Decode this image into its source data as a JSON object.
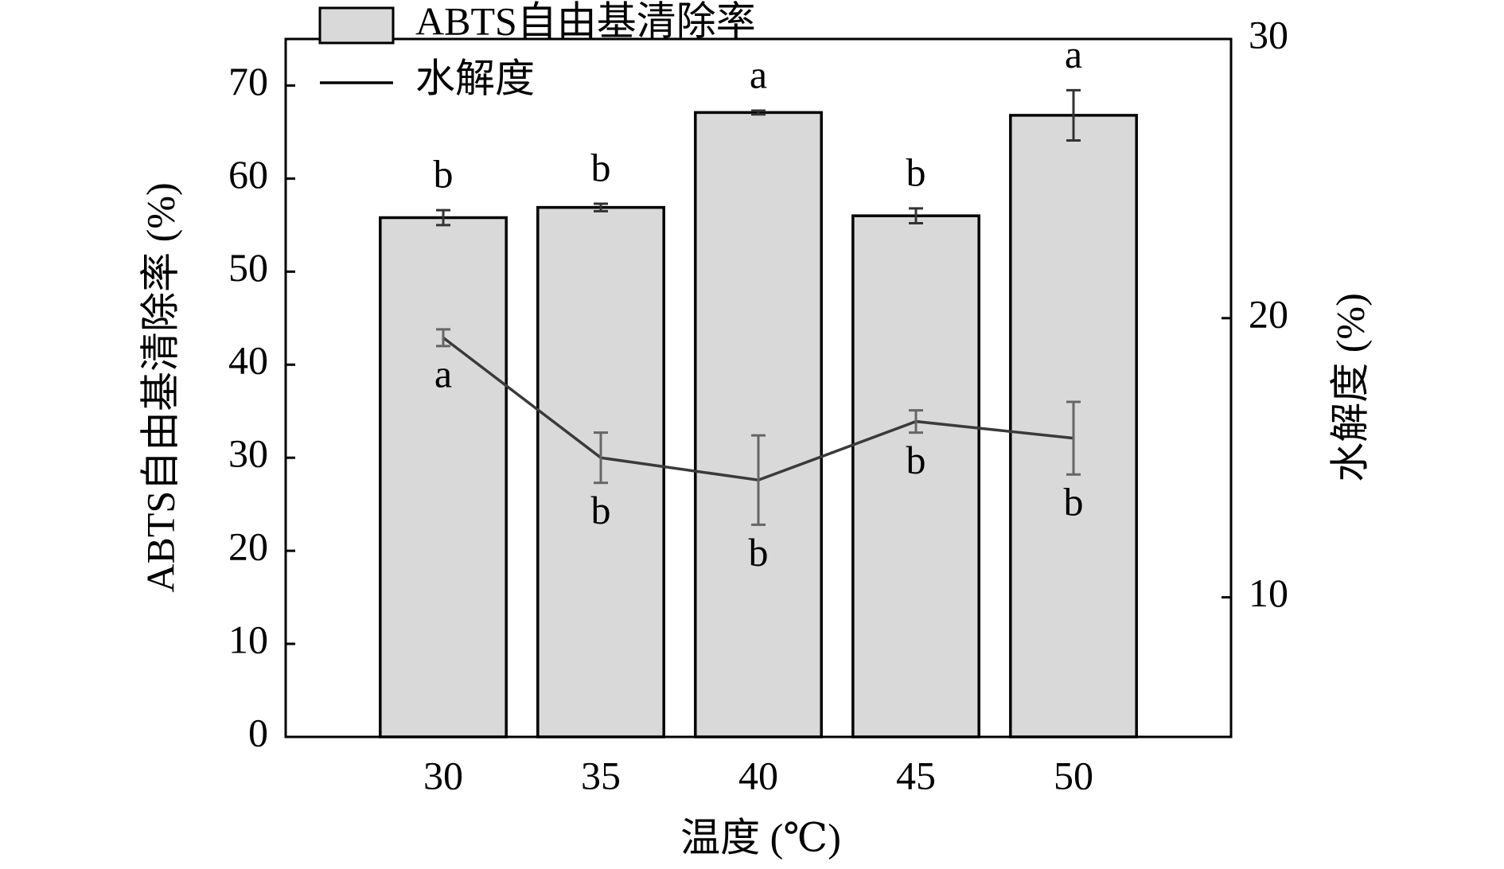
{
  "chart_data": {
    "type": "bar-line",
    "x_label": "温度 (℃)",
    "y_label": "ABTS自由基清除率 (%)",
    "y2_label": "水解度 (%)",
    "categories": [
      "30",
      "35",
      "40",
      "45",
      "50"
    ],
    "ylim": [
      0,
      75
    ],
    "yticks": [
      0,
      10,
      20,
      30,
      40,
      50,
      60,
      70
    ],
    "y2lim": [
      5,
      30
    ],
    "y2ticks": [
      10,
      20,
      30
    ],
    "legend": "upper left",
    "series": [
      {
        "name": "ABTS自由基清除率",
        "type": "bar",
        "color": "#d9d9d9",
        "values": [
          55.8,
          56.9,
          67.1,
          56.0,
          66.8
        ],
        "errors": [
          0.8,
          0.4,
          0.2,
          0.8,
          2.7
        ],
        "significance": [
          "b",
          "b",
          "a",
          "b",
          "a"
        ]
      },
      {
        "name": "水解度",
        "type": "line",
        "axis": "y2",
        "color": "#3a3a3a",
        "values": [
          19.3,
          15.0,
          14.2,
          16.3,
          15.7
        ],
        "errors": [
          0.3,
          0.9,
          1.6,
          0.4,
          1.3
        ],
        "significance": [
          "a",
          "b",
          "b",
          "b",
          "b"
        ]
      }
    ]
  }
}
